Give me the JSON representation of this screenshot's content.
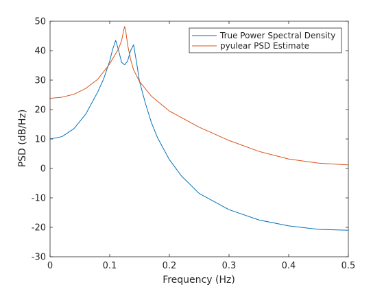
{
  "chart_data": {
    "type": "line",
    "title": "",
    "xlabel": "Frequency (Hz)",
    "ylabel": "PSD (dB/Hz)",
    "xlim": [
      0,
      0.5
    ],
    "ylim": [
      -30,
      50
    ],
    "xticks": [
      0,
      0.1,
      0.2,
      0.3,
      0.4,
      0.5
    ],
    "xtick_labels": [
      "0",
      "0.1",
      "0.2",
      "0.3",
      "0.4",
      "0.5"
    ],
    "yticks": [
      -30,
      -20,
      -10,
      0,
      10,
      20,
      30,
      40,
      50
    ],
    "ytick_labels": [
      "-30",
      "-20",
      "-10",
      "0",
      "10",
      "20",
      "30",
      "40",
      "50"
    ],
    "grid": false,
    "legend_position": "top-right",
    "series": [
      {
        "name": "True Power Spectral Density",
        "color": "#0072BD",
        "x": [
          0,
          0.02,
          0.04,
          0.06,
          0.08,
          0.09,
          0.1,
          0.105,
          0.11,
          0.115,
          0.12,
          0.125,
          0.13,
          0.135,
          0.14,
          0.145,
          0.15,
          0.16,
          0.17,
          0.18,
          0.2,
          0.22,
          0.25,
          0.3,
          0.35,
          0.4,
          0.45,
          0.5
        ],
        "y": [
          10,
          10.8,
          13.5,
          18.5,
          26,
          30.5,
          36.5,
          40.5,
          43.5,
          40,
          36,
          35.2,
          36.5,
          40,
          42,
          36,
          29.5,
          22,
          15.5,
          10.5,
          3,
          -2.5,
          -8.5,
          -14,
          -17.5,
          -19.5,
          -20.7,
          -21
        ]
      },
      {
        "name": "pyulear PSD Estimate",
        "color": "#D95319",
        "x": [
          0,
          0.02,
          0.04,
          0.06,
          0.08,
          0.1,
          0.11,
          0.115,
          0.12,
          0.123,
          0.125,
          0.127,
          0.13,
          0.135,
          0.14,
          0.15,
          0.17,
          0.2,
          0.25,
          0.3,
          0.35,
          0.4,
          0.45,
          0.5
        ],
        "y": [
          23.8,
          24.2,
          25.2,
          27.2,
          30.3,
          35.5,
          39,
          40.7,
          43.5,
          46.5,
          48.2,
          46.5,
          42,
          37,
          33.5,
          29.5,
          24.5,
          19.5,
          14,
          9.5,
          5.8,
          3.2,
          1.8,
          1.2
        ]
      }
    ]
  }
}
